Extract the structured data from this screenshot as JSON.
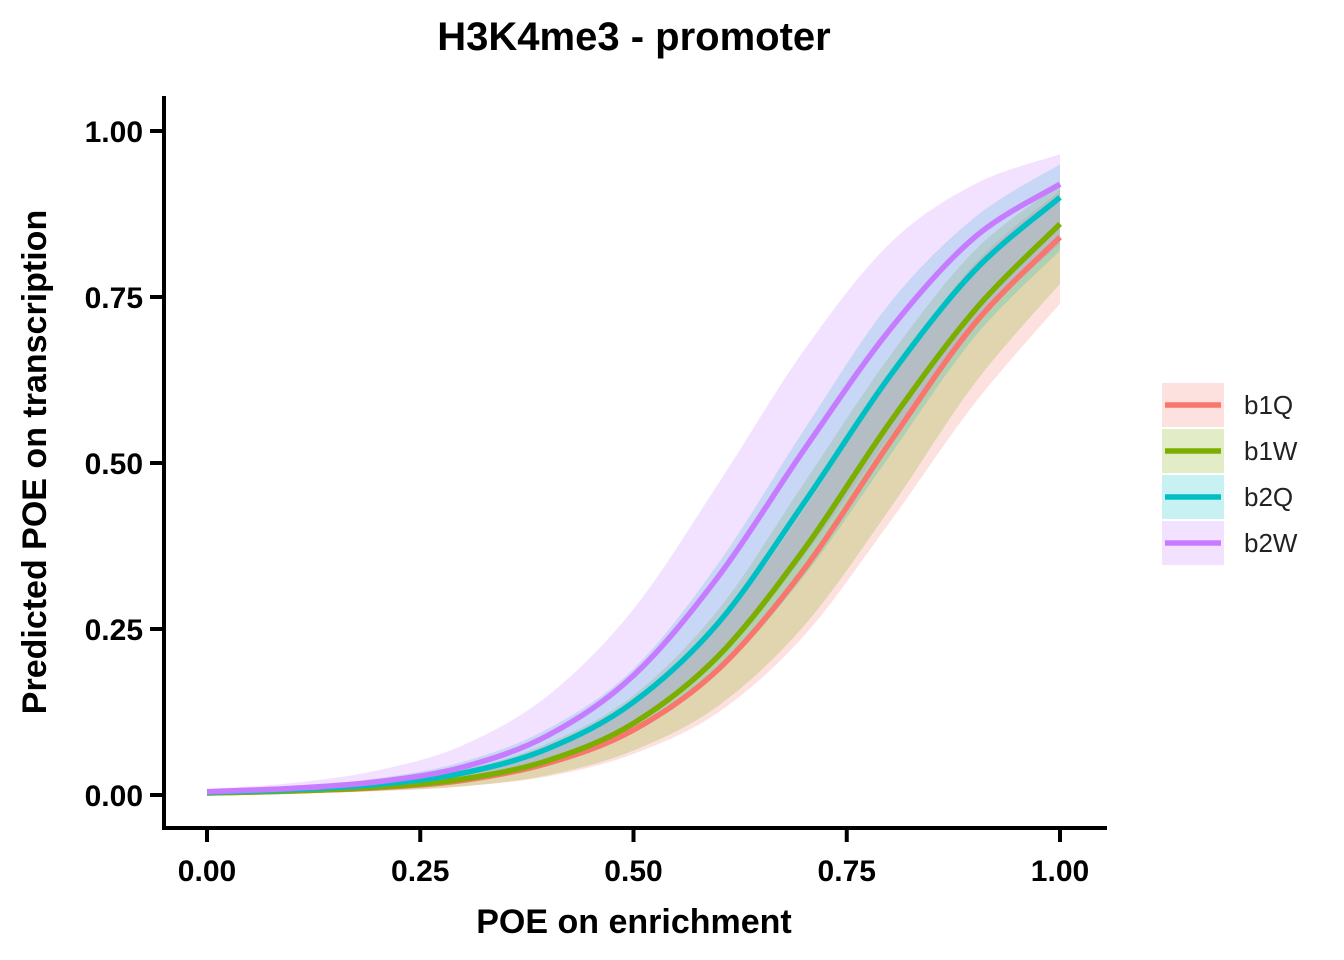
{
  "chart_data": {
    "type": "line",
    "title": "H3K4me3 - promoter",
    "xlabel": "POE on enrichment",
    "ylabel": "Predicted POE on transcription",
    "xlim": [
      -0.05,
      1.05
    ],
    "ylim": [
      -0.05,
      1.05
    ],
    "x_ticks": [
      "0.00",
      "0.25",
      "0.50",
      "0.75",
      "1.00"
    ],
    "y_ticks": [
      "0.00",
      "0.25",
      "0.50",
      "0.75",
      "1.00"
    ],
    "x_tick_values": [
      0,
      0.25,
      0.5,
      0.75,
      1.0
    ],
    "y_tick_values": [
      0,
      0.25,
      0.5,
      0.75,
      1.0
    ],
    "grid": false,
    "legend_position": "right",
    "x": [
      0.0,
      0.1,
      0.2,
      0.3,
      0.4,
      0.5,
      0.6,
      0.7,
      0.8,
      0.9,
      1.0
    ],
    "series": [
      {
        "name": "b1Q",
        "color": "#F8766D",
        "values": [
          0.003,
          0.006,
          0.011,
          0.022,
          0.048,
          0.098,
          0.19,
          0.34,
          0.53,
          0.71,
          0.84
        ],
        "lower": [
          0.001,
          0.003,
          0.006,
          0.013,
          0.028,
          0.062,
          0.125,
          0.24,
          0.41,
          0.59,
          0.74
        ],
        "upper": [
          0.006,
          0.011,
          0.019,
          0.035,
          0.07,
          0.135,
          0.255,
          0.43,
          0.63,
          0.8,
          0.91
        ]
      },
      {
        "name": "b1W",
        "color": "#7CAE00",
        "values": [
          0.003,
          0.006,
          0.012,
          0.024,
          0.052,
          0.108,
          0.21,
          0.37,
          0.56,
          0.73,
          0.86
        ],
        "lower": [
          0.001,
          0.003,
          0.006,
          0.013,
          0.03,
          0.067,
          0.135,
          0.255,
          0.43,
          0.62,
          0.77
        ],
        "upper": [
          0.006,
          0.011,
          0.02,
          0.038,
          0.078,
          0.15,
          0.28,
          0.47,
          0.66,
          0.82,
          0.92
        ]
      },
      {
        "name": "b2Q",
        "color": "#00BFC4",
        "values": [
          0.004,
          0.008,
          0.016,
          0.033,
          0.07,
          0.14,
          0.26,
          0.44,
          0.63,
          0.79,
          0.9
        ],
        "lower": [
          0.002,
          0.004,
          0.009,
          0.02,
          0.045,
          0.095,
          0.185,
          0.33,
          0.51,
          0.69,
          0.82
        ],
        "upper": [
          0.007,
          0.013,
          0.025,
          0.05,
          0.1,
          0.19,
          0.35,
          0.55,
          0.74,
          0.87,
          0.95
        ]
      },
      {
        "name": "b2W",
        "color": "#C77CFF",
        "values": [
          0.005,
          0.01,
          0.02,
          0.042,
          0.09,
          0.18,
          0.33,
          0.52,
          0.7,
          0.84,
          0.92
        ],
        "lower": [
          0.002,
          0.005,
          0.01,
          0.022,
          0.05,
          0.105,
          0.205,
          0.36,
          0.54,
          0.71,
          0.83
        ],
        "upper": [
          0.009,
          0.018,
          0.037,
          0.075,
          0.15,
          0.28,
          0.47,
          0.67,
          0.83,
          0.92,
          0.965
        ]
      }
    ]
  }
}
